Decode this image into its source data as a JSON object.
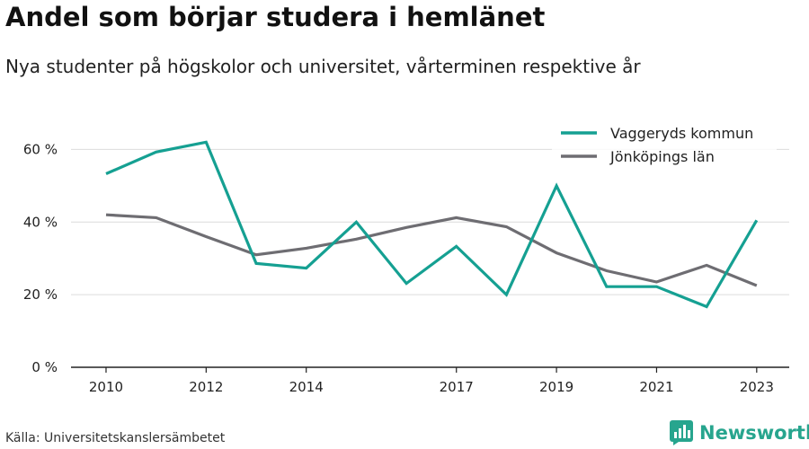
{
  "title": "Andel som börjar studera i hemlänet",
  "subtitle": "Nya studenter på högskolor och universitet, vårterminen respektive år",
  "source": "Källa: Universitetskanslersämbetet",
  "brand": {
    "name": "Newsworthy",
    "icon": "newsworthy-logo-icon",
    "color": "#27a58e"
  },
  "colors": {
    "vaggeryd": "#15a092",
    "jonkoping": "#6e6d72",
    "grid": "#dcdcdc",
    "axis": "#222222"
  },
  "chart_data": {
    "type": "line",
    "x": [
      2010,
      2011,
      2012,
      2013,
      2014,
      2015,
      2016,
      2017,
      2018,
      2019,
      2020,
      2021,
      2022,
      2023
    ],
    "x_tick_labels": [
      "2010",
      "2012",
      "2014",
      "2017",
      "2019",
      "2021",
      "2023"
    ],
    "x_tick_values": [
      2010,
      2012,
      2014,
      2017,
      2019,
      2021,
      2023
    ],
    "y_ticks": [
      0,
      20,
      40,
      60
    ],
    "y_tick_labels": [
      "0 %",
      "20 %",
      "40 %",
      "60 %"
    ],
    "ylim": [
      0,
      70
    ],
    "legend_position": "top-right",
    "grid": true,
    "series": [
      {
        "name": "Vaggeryds kommun",
        "color": "#15a092",
        "values": [
          53.3,
          59.3,
          62.0,
          28.6,
          27.3,
          40.0,
          23.1,
          33.3,
          20.0,
          50.0,
          22.2,
          22.2,
          16.7,
          40.5
        ]
      },
      {
        "name": "Jönköpings län",
        "color": "#6e6d72",
        "values": [
          42.0,
          41.2,
          36.0,
          31.0,
          32.8,
          35.3,
          38.5,
          41.2,
          38.7,
          31.5,
          26.6,
          23.5,
          28.1,
          22.5
        ]
      }
    ]
  }
}
